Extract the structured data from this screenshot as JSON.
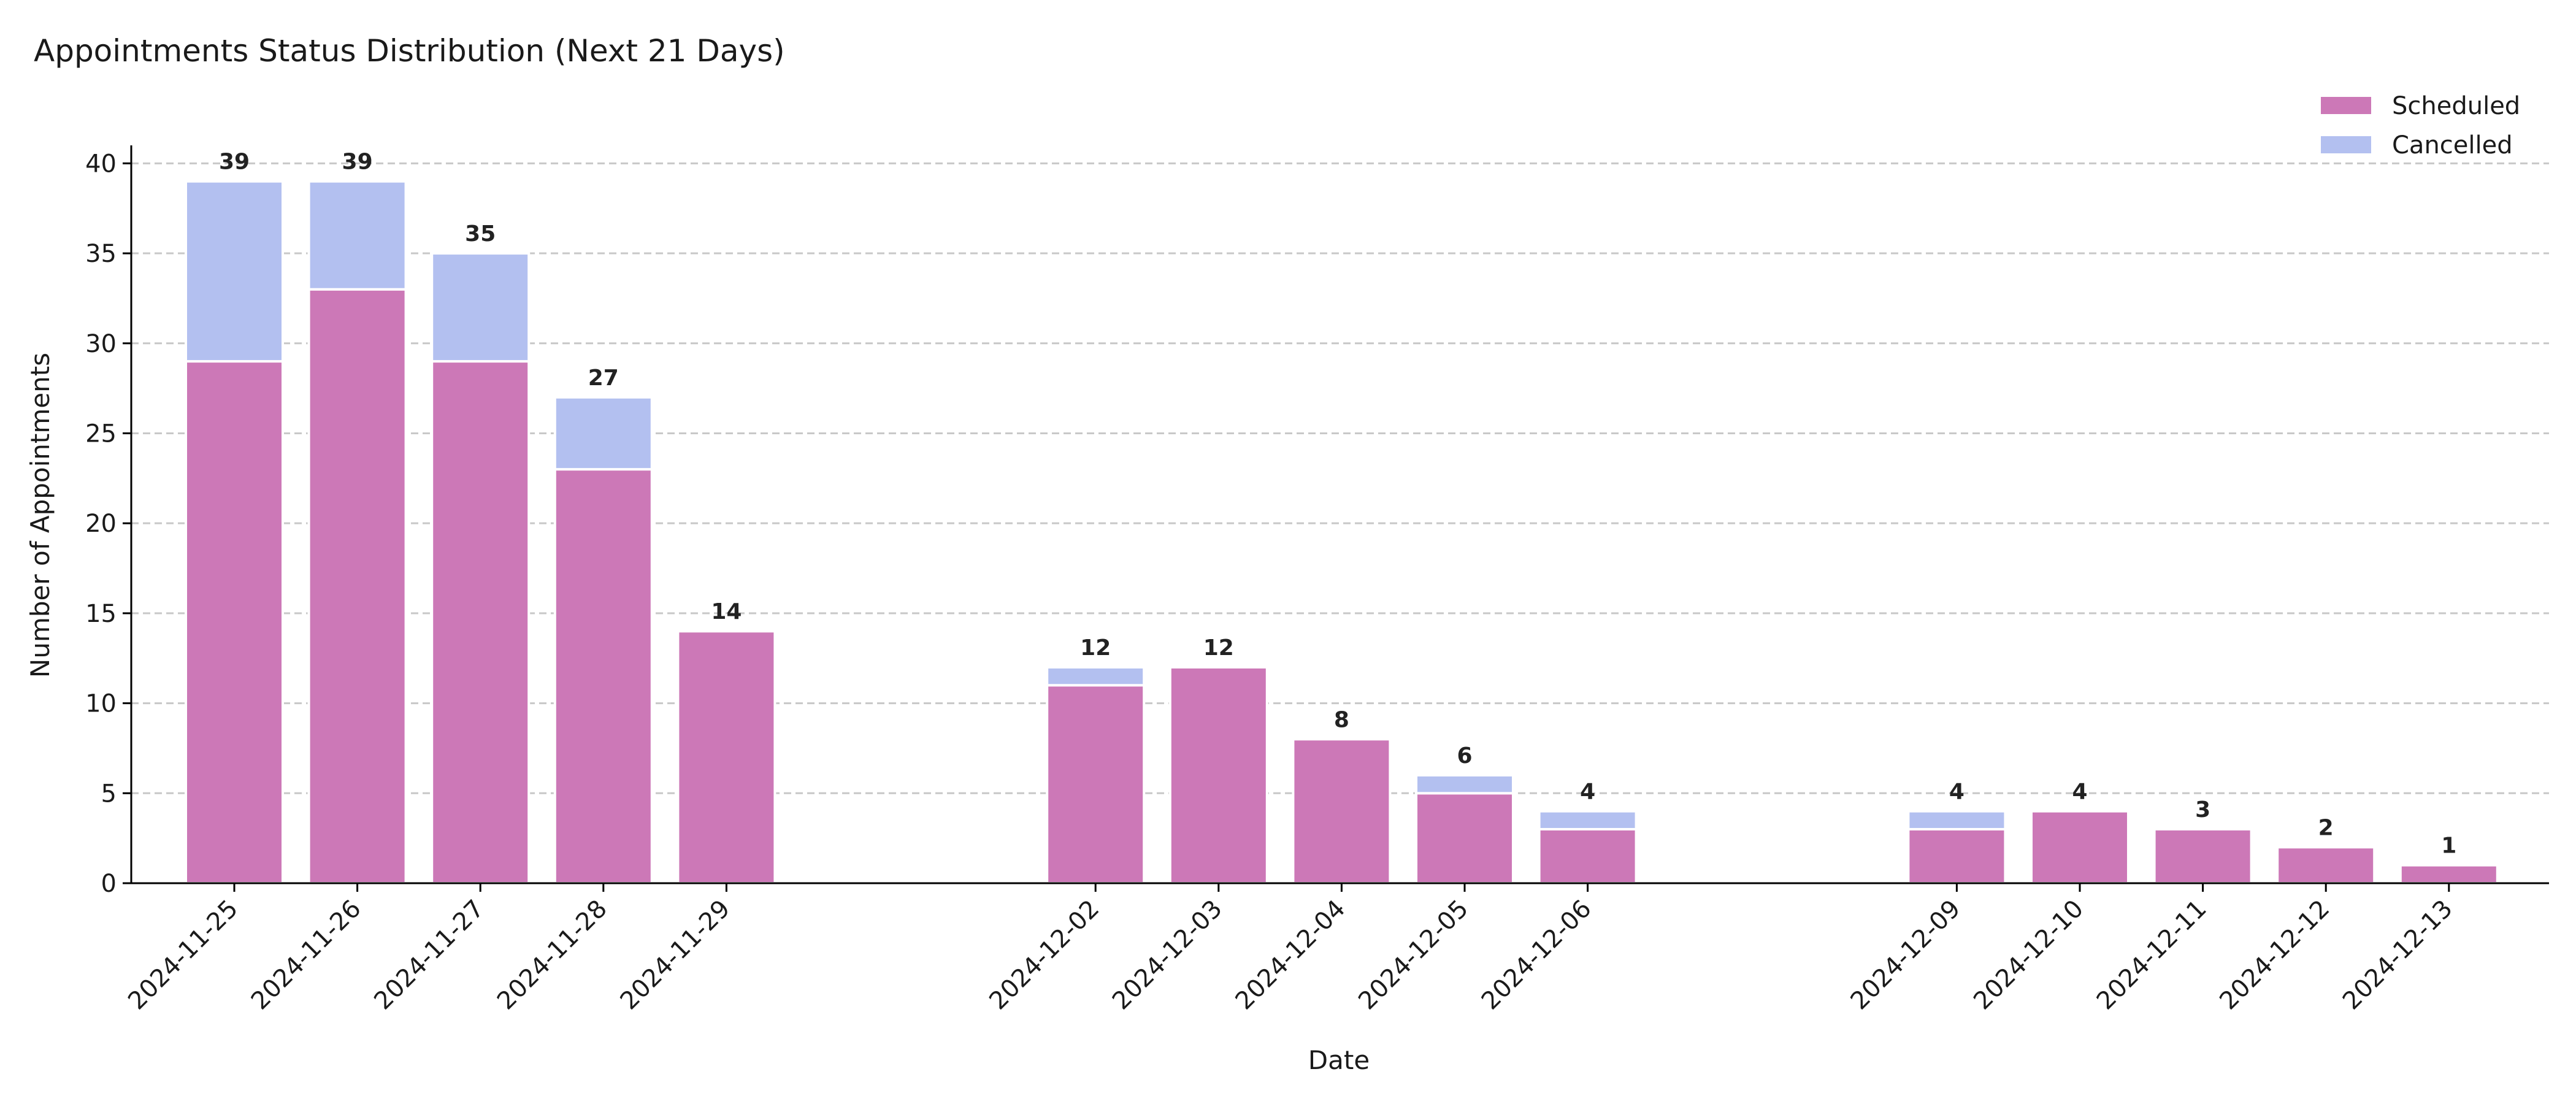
{
  "chart_data": {
    "type": "bar",
    "stacked": true,
    "title": "Appointments Status Distribution (Next 21 Days)",
    "xlabel": "Date",
    "ylabel": "Number of Appointments",
    "ylim": [
      0,
      41
    ],
    "yticks": [
      0,
      5,
      10,
      15,
      20,
      25,
      30,
      35,
      40
    ],
    "grid": "horizontal dashed",
    "legend_position": "top-right",
    "categories": [
      "2024-11-25",
      "2024-11-26",
      "2024-11-27",
      "2024-11-28",
      "2024-11-29",
      "2024-12-02",
      "2024-12-03",
      "2024-12-04",
      "2024-12-05",
      "2024-12-06",
      "2024-12-09",
      "2024-12-10",
      "2024-12-11",
      "2024-12-12",
      "2024-12-13"
    ],
    "x_positions_days": [
      0,
      1,
      2,
      3,
      4,
      7,
      8,
      9,
      10,
      11,
      14,
      15,
      16,
      17,
      18
    ],
    "series": [
      {
        "name": "Scheduled",
        "color": "#cc78b7",
        "values": [
          29,
          33,
          29,
          23,
          14,
          11,
          12,
          8,
          5,
          3,
          3,
          4,
          3,
          2,
          1
        ]
      },
      {
        "name": "Cancelled",
        "color": "#b3c0f0",
        "values": [
          10,
          6,
          6,
          4,
          0,
          1,
          0,
          0,
          1,
          1,
          1,
          0,
          0,
          0,
          0
        ]
      }
    ],
    "totals": [
      39,
      39,
      35,
      27,
      14,
      12,
      12,
      8,
      6,
      4,
      4,
      4,
      3,
      2,
      1
    ]
  }
}
